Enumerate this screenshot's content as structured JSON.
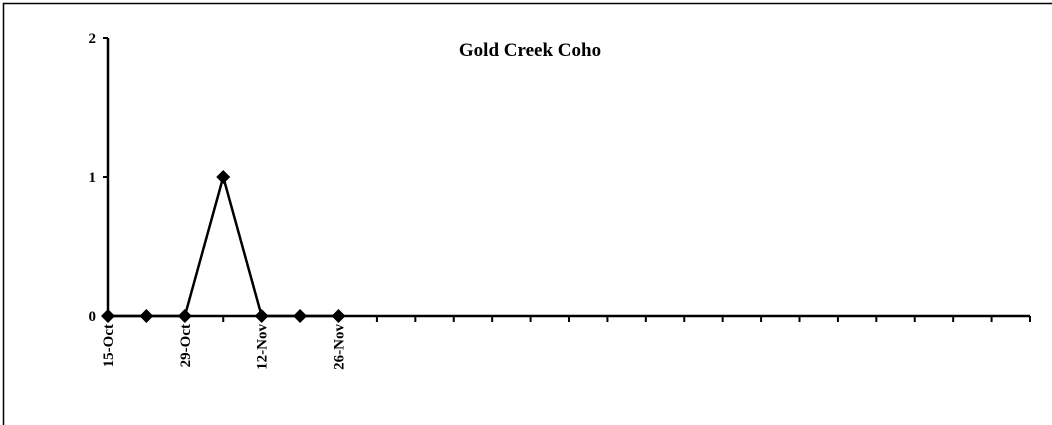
{
  "chart_data": {
    "type": "line",
    "title": "Gold Creek Coho",
    "categories": [
      "15-Oct",
      null,
      "29-Oct",
      null,
      "12-Nov",
      null,
      "26-Nov",
      null,
      null,
      null,
      null,
      null,
      null,
      null,
      null,
      null,
      null,
      null,
      null,
      null,
      null,
      null,
      null,
      null,
      null
    ],
    "series": [
      {
        "name": null,
        "color": "#000000",
        "values": [
          0,
          0,
          0,
          1,
          0,
          0,
          0,
          null,
          null,
          null,
          null,
          null,
          null,
          null,
          null,
          null,
          null,
          null,
          null,
          null,
          null,
          null,
          null,
          null,
          null
        ]
      }
    ],
    "ylim": [
      0,
      2
    ],
    "yticks": [
      0,
      1,
      2
    ]
  }
}
